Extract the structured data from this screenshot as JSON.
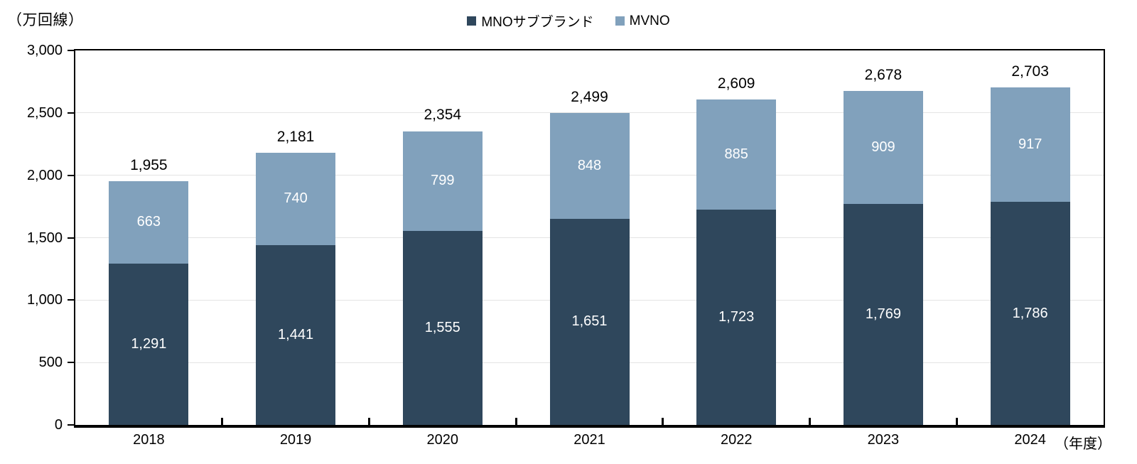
{
  "y_axis_unit_label": "（万回線）",
  "x_axis_unit_label": "（年度）",
  "legend": {
    "position": "top-center",
    "items": [
      {
        "label": "MNOサブブランド",
        "color": "#2F475C"
      },
      {
        "label": "MVNO",
        "color": "#81A1BC"
      }
    ]
  },
  "chart_data": {
    "type": "bar",
    "stacked": true,
    "title": "",
    "xlabel": "（年度）",
    "ylabel": "（万回線）",
    "categories": [
      "2018",
      "2019",
      "2020",
      "2021",
      "2022",
      "2023",
      "2024"
    ],
    "series": [
      {
        "name": "MNOサブブランド",
        "color": "#2F475C",
        "values": [
          1291,
          1441,
          1555,
          1651,
          1723,
          1769,
          1786
        ],
        "labels": [
          "1,291",
          "1,441",
          "1,555",
          "1,651",
          "1,723",
          "1,769",
          "1,786"
        ]
      },
      {
        "name": "MVNO",
        "color": "#81A1BC",
        "values": [
          663,
          740,
          799,
          848,
          885,
          909,
          917
        ],
        "labels": [
          "663",
          "740",
          "799",
          "848",
          "885",
          "909",
          "917"
        ]
      }
    ],
    "totals": [
      1955,
      2181,
      2354,
      2499,
      2609,
      2678,
      2703
    ],
    "total_labels": [
      "1,955",
      "2,181",
      "2,354",
      "2,499",
      "2,609",
      "2,678",
      "2,703"
    ],
    "ylim": [
      0,
      3000
    ],
    "ytick_interval": 500,
    "ytick_labels": [
      "0",
      "500",
      "1,000",
      "1,500",
      "2,000",
      "2,500",
      "3,000"
    ],
    "grid": true,
    "gridline_color": "#E4E4E4",
    "value_label_color": "#FFFFFF",
    "axis_color": "#000000"
  }
}
